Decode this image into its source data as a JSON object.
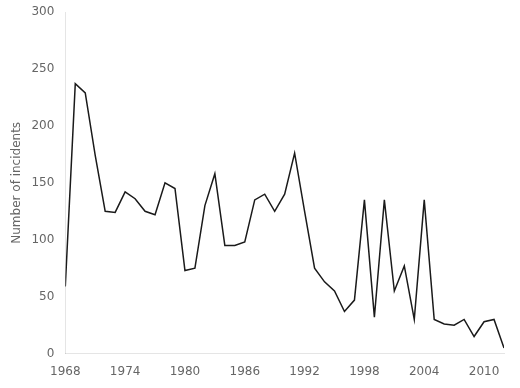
{
  "chart_data": {
    "type": "line",
    "x": [
      1968,
      1969,
      1970,
      1971,
      1972,
      1973,
      1974,
      1975,
      1976,
      1977,
      1978,
      1979,
      1980,
      1981,
      1982,
      1983,
      1984,
      1985,
      1986,
      1987,
      1988,
      1989,
      1990,
      1991,
      1992,
      1993,
      1994,
      1995,
      1996,
      1997,
      1998,
      1999,
      2000,
      2001,
      2002,
      2003,
      2004,
      2005,
      2006,
      2007,
      2008,
      2009,
      2010,
      2011,
      2012
    ],
    "values": [
      59,
      237,
      229,
      174,
      125,
      124,
      142,
      136,
      125,
      122,
      150,
      145,
      73,
      75,
      130,
      158,
      95,
      95,
      98,
      135,
      140,
      125,
      140,
      176,
      125,
      75,
      63,
      55,
      37,
      47,
      135,
      32,
      135,
      55,
      77,
      30,
      135,
      30,
      26,
      25,
      30,
      15,
      28,
      30,
      5
    ],
    "color": "#1a1a1a",
    "ylabel": "Number of incidents",
    "xlim": [
      1968,
      2012
    ],
    "ylim": [
      0,
      300
    ],
    "xticks": [
      1968,
      1974,
      1980,
      1986,
      1992,
      1998,
      2004,
      2010
    ],
    "yticks": [
      0,
      50,
      100,
      150,
      200,
      250,
      300
    ],
    "grid": false
  }
}
